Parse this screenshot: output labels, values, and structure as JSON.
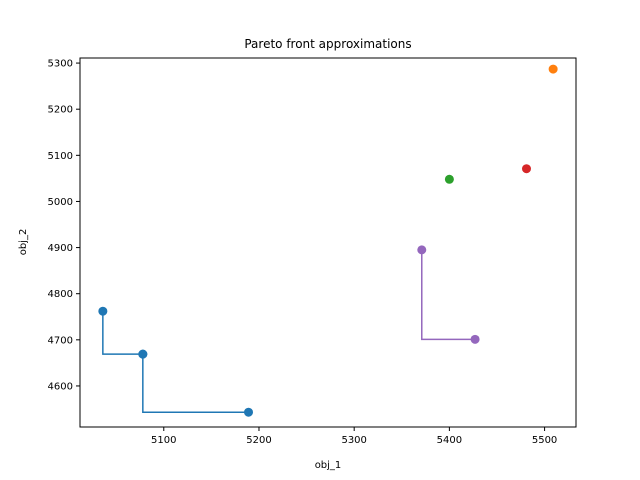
{
  "chart_data": {
    "type": "scatter",
    "title": "Pareto front approximations",
    "xlabel": "obj_1",
    "ylabel": "obj_2",
    "xlim": [
      5012,
      5533
    ],
    "ylim": [
      4511,
      5311
    ],
    "xticks": [
      5100,
      5200,
      5300,
      5400,
      5500
    ],
    "yticks": [
      4600,
      4700,
      4800,
      4900,
      5000,
      5100,
      5200,
      5300
    ],
    "grid": false,
    "series": [
      {
        "color": "#1f77b4",
        "step": true,
        "points": [
          [
            5036,
            4762
          ],
          [
            5078,
            4669
          ],
          [
            5078,
            4669
          ],
          [
            5189,
            4543
          ]
        ]
      },
      {
        "color": "#ff7f0e",
        "step": false,
        "points": [
          [
            5509,
            5287
          ]
        ]
      },
      {
        "color": "#2ca02c",
        "step": false,
        "points": [
          [
            5400,
            5048
          ]
        ]
      },
      {
        "color": "#d62728",
        "step": false,
        "points": [
          [
            5481,
            5071
          ]
        ]
      },
      {
        "color": "#9467bd",
        "step": true,
        "points": [
          [
            5371,
            4895
          ],
          [
            5427,
            4701
          ]
        ]
      }
    ]
  }
}
